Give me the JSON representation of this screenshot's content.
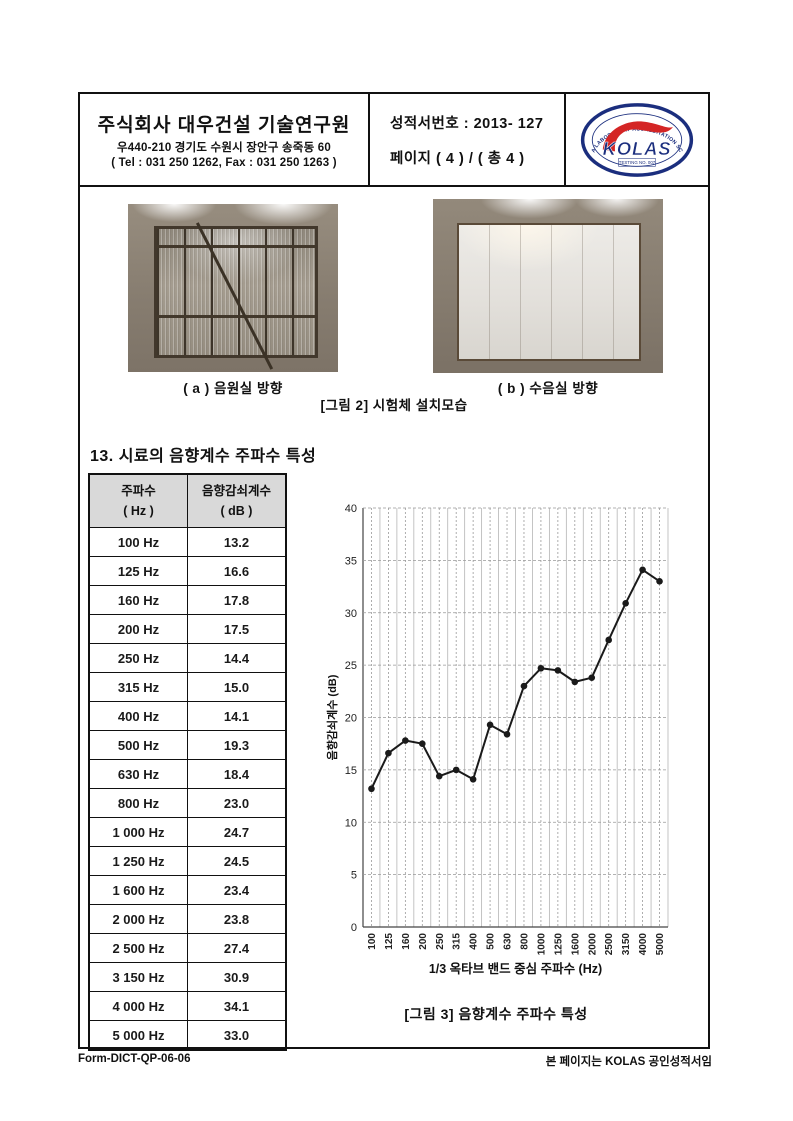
{
  "header": {
    "company": "주식회사 대우건설 기술연구원",
    "address": "우440-210 경기도 수원시 장안구 송죽동 60",
    "contact": "( Tel : 031 250 1262, Fax : 031 250 1263 )",
    "report_no": "성적서번호 : 2013- 127",
    "page_info": "페이지 ( 4 ) / ( 총 4 )",
    "logo": {
      "arc_text": "KOREA LABORATORY ACCREDITATION SCHEME",
      "name": "KOLAS",
      "sub_text": "TESTING NO. 007",
      "blue": "#1b2e7e",
      "red": "#d42525"
    }
  },
  "figure2": {
    "caption_a": "( a ) 음원실 방향",
    "caption_b": "( b ) 수음실 방향",
    "caption": "[그림 2] 시험체 설치모습"
  },
  "section": {
    "title": "13. 시료의 음향계수 주파수 특성"
  },
  "table": {
    "headers": [
      {
        "line1": "주파수",
        "line2": "( Hz )"
      },
      {
        "line1": "음향감쇠계수",
        "line2": "( dB )"
      }
    ],
    "rows": [
      [
        "100 Hz",
        "13.2"
      ],
      [
        "125 Hz",
        "16.6"
      ],
      [
        "160 Hz",
        "17.8"
      ],
      [
        "200 Hz",
        "17.5"
      ],
      [
        "250 Hz",
        "14.4"
      ],
      [
        "315 Hz",
        "15.0"
      ],
      [
        "400 Hz",
        "14.1"
      ],
      [
        "500 Hz",
        "19.3"
      ],
      [
        "630 Hz",
        "18.4"
      ],
      [
        "800 Hz",
        "23.0"
      ],
      [
        "1 000 Hz",
        "24.7"
      ],
      [
        "1 250 Hz",
        "24.5"
      ],
      [
        "1 600 Hz",
        "23.4"
      ],
      [
        "2 000 Hz",
        "23.8"
      ],
      [
        "2 500 Hz",
        "27.4"
      ],
      [
        "3 150 Hz",
        "30.9"
      ],
      [
        "4 000 Hz",
        "34.1"
      ],
      [
        "5 000 Hz",
        "33.0"
      ]
    ]
  },
  "chart_data": {
    "type": "line",
    "categories": [
      "100",
      "125",
      "160",
      "200",
      "250",
      "315",
      "400",
      "500",
      "630",
      "800",
      "1000",
      "1250",
      "1600",
      "2000",
      "2500",
      "3150",
      "4000",
      "5000"
    ],
    "values": [
      13.2,
      16.6,
      17.8,
      17.5,
      14.4,
      15.0,
      14.1,
      19.3,
      18.4,
      23.0,
      24.7,
      24.5,
      23.4,
      23.8,
      27.4,
      30.9,
      34.1,
      33.0
    ],
    "title": "",
    "xlabel": "1/3 옥타브 밴드 중심 주파수 (Hz)",
    "ylabel": "음향감쇠계수 (dB)",
    "ylim": [
      0,
      40
    ],
    "ytick_step": 5,
    "grid": true,
    "legend": "none",
    "line_color": "#1a1a1a",
    "marker": "circle"
  },
  "figure3": {
    "caption": "[그림 3] 음향계수 주파수 특성"
  },
  "footer": {
    "left": "Form-DICT-QP-06-06",
    "right": "본 페이지는 KOLAS 공인성적서임"
  }
}
